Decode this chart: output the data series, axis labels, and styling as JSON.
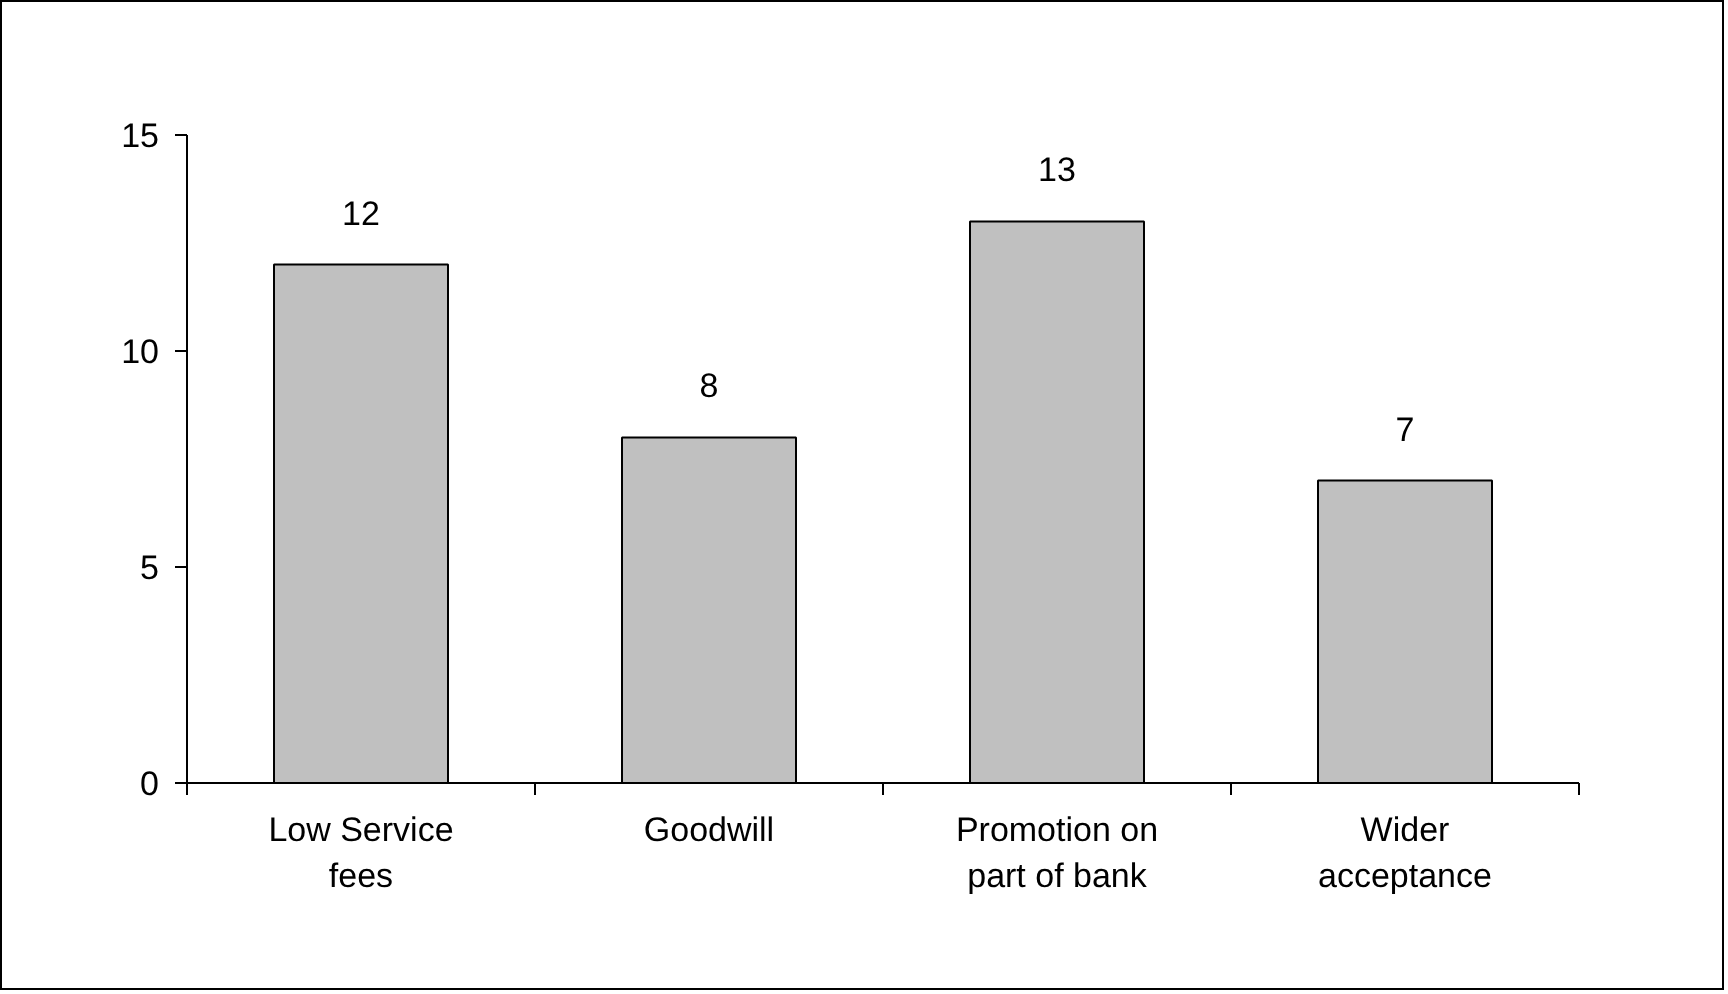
{
  "chart_data": {
    "type": "bar",
    "categories": [
      "Low Service fees",
      "Goodwill",
      "Promotion on part of bank",
      "Wider acceptance"
    ],
    "values": [
      12,
      8,
      13,
      7
    ],
    "color": "#c0c0c0",
    "ylim": [
      0,
      15
    ],
    "yticks": [
      0,
      5,
      10,
      15
    ],
    "grid": false,
    "data_labels": true
  }
}
